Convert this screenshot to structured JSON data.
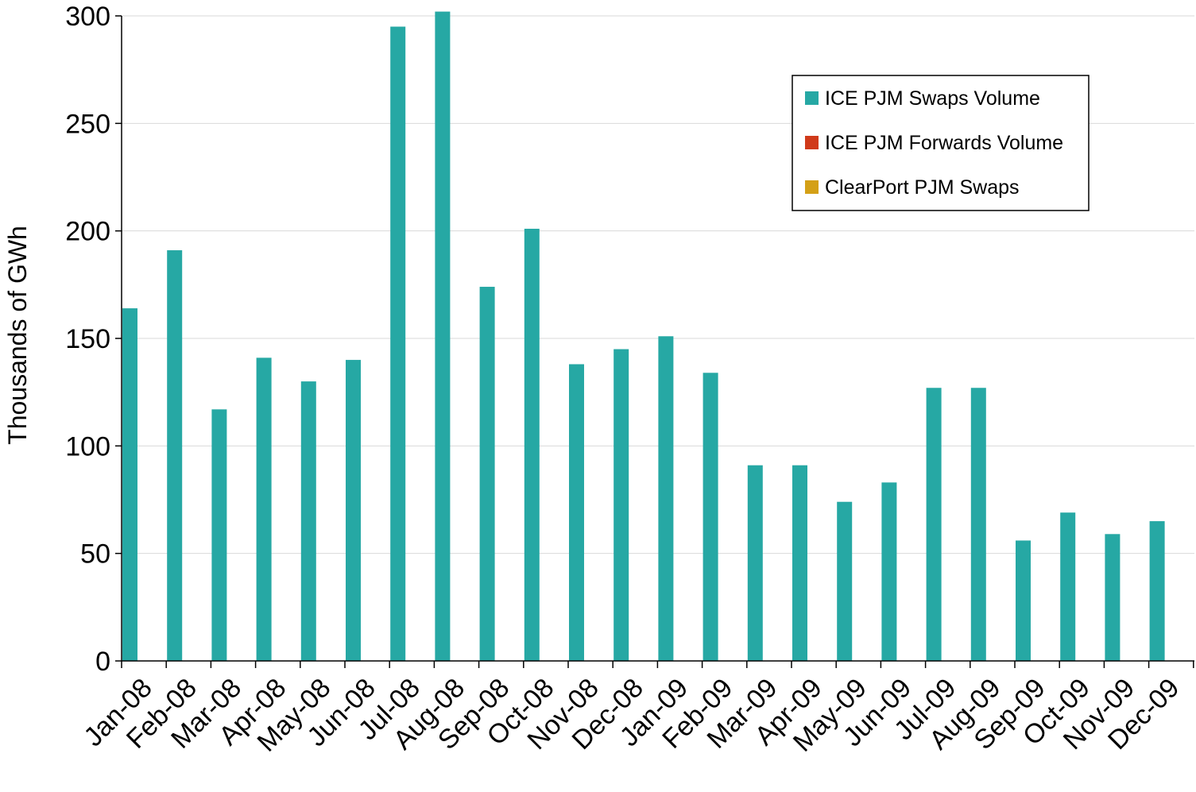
{
  "chart_data": {
    "type": "bar",
    "title": "",
    "xlabel": "",
    "ylabel": "Thousands of GWh",
    "ylim": [
      0,
      300
    ],
    "yticks": [
      0,
      50,
      100,
      150,
      200,
      250,
      300
    ],
    "grid": true,
    "legend_position": "top-right",
    "categories": [
      "Jan-08",
      "Feb-08",
      "Mar-08",
      "Apr-08",
      "May-08",
      "Jun-08",
      "Jul-08",
      "Aug-08",
      "Sep-08",
      "Oct-08",
      "Nov-08",
      "Dec-08",
      "Jan-09",
      "Feb-09",
      "Mar-09",
      "Apr-09",
      "May-09",
      "Jun-09",
      "Jul-09",
      "Aug-09",
      "Sep-09",
      "Oct-09",
      "Nov-09",
      "Dec-09"
    ],
    "series": [
      {
        "name": "ICE PJM Swaps Volume",
        "color": "#26a8a4",
        "values": [
          164,
          191,
          117,
          141,
          130,
          140,
          295,
          302,
          174,
          201,
          138,
          145,
          151,
          134,
          91,
          91,
          74,
          83,
          127,
          127,
          56,
          69,
          59,
          65
        ]
      },
      {
        "name": "ICE PJM Forwards Volume",
        "color": "#d03a1a",
        "values": [
          0,
          0,
          0,
          0,
          0,
          0,
          0,
          0,
          0,
          0,
          0,
          0,
          0,
          0,
          0,
          0,
          0,
          0,
          0,
          0,
          0,
          0,
          0,
          0
        ]
      },
      {
        "name": "ClearPort PJM Swaps",
        "color": "#d4a017",
        "values": [
          0,
          0,
          0,
          0,
          0,
          0,
          0,
          0,
          0,
          0,
          0,
          0,
          0,
          0,
          0,
          0,
          0,
          0,
          0,
          0,
          0,
          0,
          0,
          0
        ]
      }
    ]
  }
}
